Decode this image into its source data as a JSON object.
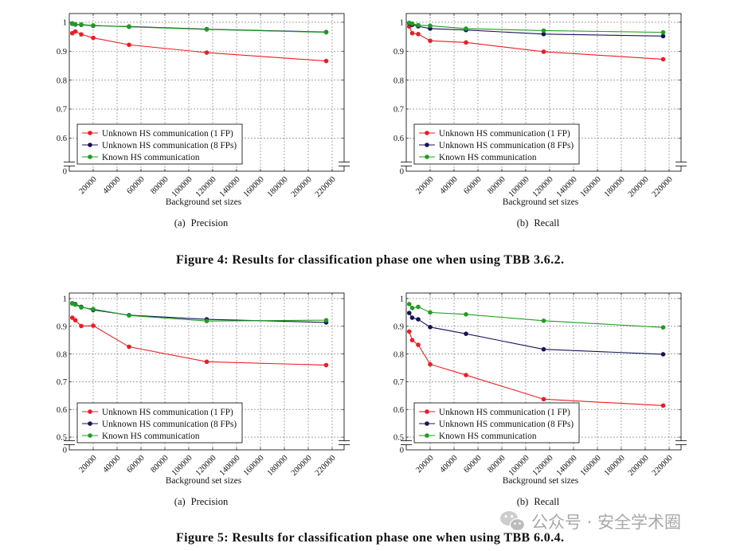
{
  "figures": [
    {
      "caption": "Figure 4: Results for classification phase one when using TBB 3.6.2."
    },
    {
      "caption": "Figure 5: Results for classification phase one when using TBB 6.0.4."
    }
  ],
  "chart_data": [
    {
      "type": "line",
      "label": "(a)",
      "caption": "Precision",
      "xlabel": "Background set sizes",
      "x": [
        2500,
        5000,
        10000,
        20000,
        50000,
        115000,
        215000
      ],
      "xlim": [
        0,
        230000
      ],
      "xticks": [
        20000,
        40000,
        60000,
        80000,
        100000,
        120000,
        140000,
        160000,
        180000,
        200000,
        220000
      ],
      "xtick_labels": [
        "20000",
        "40000",
        "60000",
        "80000",
        "100000",
        "120000",
        "140000",
        "160000",
        "180000",
        "200000",
        "220000"
      ],
      "ylim": [
        0.51,
        1.03
      ],
      "yticks": [
        0.6,
        0.7,
        0.8,
        0.9,
        1
      ],
      "ytick_labels": [
        "0.6",
        "0.7",
        "0.8",
        "0.9",
        "1"
      ],
      "y_axis_break": true,
      "y_break_tick": {
        "value": 0,
        "label": "0"
      },
      "grid": true,
      "legend_position": "bottom-left",
      "series": [
        {
          "name": "Unknown HS communication (1 FP)",
          "color": "#ed1c24",
          "values": [
            0.962,
            0.968,
            0.958,
            0.946,
            0.922,
            0.895,
            0.866
          ]
        },
        {
          "name": "Unknown HS communication (8 FPs)",
          "color": "#141457",
          "values": [
            0.995,
            0.992,
            0.991,
            0.988,
            0.985,
            0.976,
            0.966
          ]
        },
        {
          "name": "Known HS communication",
          "color": "#1f9d22",
          "values": [
            0.996,
            0.993,
            0.992,
            0.989,
            0.984,
            0.975,
            0.965
          ]
        }
      ]
    },
    {
      "type": "line",
      "label": "(b)",
      "caption": "Recall",
      "xlabel": "Background set sizes",
      "x": [
        2500,
        5000,
        10000,
        20000,
        50000,
        115000,
        215000
      ],
      "xlim": [
        0,
        230000
      ],
      "xticks": [
        20000,
        40000,
        60000,
        80000,
        100000,
        120000,
        140000,
        160000,
        180000,
        200000,
        220000
      ],
      "xtick_labels": [
        "20000",
        "40000",
        "60000",
        "80000",
        "100000",
        "120000",
        "140000",
        "160000",
        "180000",
        "200000",
        "220000"
      ],
      "ylim": [
        0.51,
        1.03
      ],
      "yticks": [
        0.6,
        0.7,
        0.8,
        0.9,
        1
      ],
      "ytick_labels": [
        "0.6",
        "0.7",
        "0.8",
        "0.9",
        "1"
      ],
      "y_axis_break": true,
      "y_break_tick": {
        "value": 0,
        "label": "0"
      },
      "grid": true,
      "legend_position": "bottom-left",
      "series": [
        {
          "name": "Unknown HS communication (1 FP)",
          "color": "#ed1c24",
          "values": [
            0.985,
            0.962,
            0.959,
            0.936,
            0.93,
            0.898,
            0.872
          ]
        },
        {
          "name": "Unknown HS communication (8 FPs)",
          "color": "#141457",
          "values": [
            0.996,
            0.991,
            0.986,
            0.978,
            0.973,
            0.959,
            0.952
          ]
        },
        {
          "name": "Known HS communication",
          "color": "#1f9d22",
          "values": [
            0.998,
            0.995,
            0.99,
            0.988,
            0.978,
            0.971,
            0.965
          ]
        }
      ]
    },
    {
      "type": "line",
      "label": "(a)",
      "caption": "Precision",
      "xlabel": "Background set sizes",
      "x": [
        2500,
        5000,
        10000,
        20000,
        50000,
        115000,
        215000
      ],
      "xlim": [
        0,
        230000
      ],
      "xticks": [
        20000,
        40000,
        60000,
        80000,
        100000,
        120000,
        140000,
        160000,
        180000,
        200000,
        220000
      ],
      "xtick_labels": [
        "20000",
        "40000",
        "60000",
        "80000",
        "100000",
        "120000",
        "140000",
        "160000",
        "180000",
        "200000",
        "220000"
      ],
      "ylim": [
        0.48,
        1.02
      ],
      "yticks": [
        0.5,
        0.6,
        0.7,
        0.8,
        0.9,
        1
      ],
      "ytick_labels": [
        "0.5",
        "0.6",
        "0.7",
        "0.8",
        "0.9",
        "1"
      ],
      "y_axis_break": true,
      "y_break_tick": {
        "value": 0,
        "label": "0"
      },
      "grid": true,
      "legend_position": "bottom-left",
      "series": [
        {
          "name": "Unknown HS communication (1 FP)",
          "color": "#ed1c24",
          "values": [
            0.931,
            0.922,
            0.901,
            0.902,
            0.826,
            0.772,
            0.76
          ]
        },
        {
          "name": "Unknown HS communication (8 FPs)",
          "color": "#141457",
          "values": [
            0.983,
            0.98,
            0.97,
            0.959,
            0.94,
            0.925,
            0.914
          ]
        },
        {
          "name": "Known HS communication",
          "color": "#1f9d22",
          "values": [
            0.982,
            0.978,
            0.968,
            0.962,
            0.939,
            0.919,
            0.922
          ]
        }
      ]
    },
    {
      "type": "line",
      "label": "(b)",
      "caption": "Recall",
      "xlabel": "Background set sizes",
      "x": [
        2500,
        5000,
        10000,
        20000,
        50000,
        115000,
        215000
      ],
      "xlim": [
        0,
        230000
      ],
      "xticks": [
        20000,
        40000,
        60000,
        80000,
        100000,
        120000,
        140000,
        160000,
        180000,
        200000,
        220000
      ],
      "xtick_labels": [
        "20000",
        "40000",
        "60000",
        "80000",
        "100000",
        "120000",
        "140000",
        "160000",
        "180000",
        "200000",
        "220000"
      ],
      "ylim": [
        0.48,
        1.02
      ],
      "yticks": [
        0.5,
        0.6,
        0.7,
        0.8,
        0.9,
        1
      ],
      "ytick_labels": [
        "0.5",
        "0.6",
        "0.7",
        "0.8",
        "0.9",
        "1"
      ],
      "y_axis_break": true,
      "y_break_tick": {
        "value": 0,
        "label": "0"
      },
      "grid": true,
      "legend_position": "bottom-left",
      "series": [
        {
          "name": "Unknown HS communication (1 FP)",
          "color": "#ed1c24",
          "values": [
            0.881,
            0.85,
            0.833,
            0.763,
            0.724,
            0.637,
            0.614
          ]
        },
        {
          "name": "Unknown HS communication (8 FPs)",
          "color": "#141457",
          "values": [
            0.948,
            0.931,
            0.925,
            0.897,
            0.873,
            0.817,
            0.799
          ]
        },
        {
          "name": "Known HS communication",
          "color": "#1f9d22",
          "values": [
            0.98,
            0.966,
            0.97,
            0.95,
            0.943,
            0.92,
            0.896
          ]
        }
      ]
    }
  ],
  "watermark": {
    "text": "公众号 · 安全学术圈",
    "icon": "wechat-icon"
  }
}
